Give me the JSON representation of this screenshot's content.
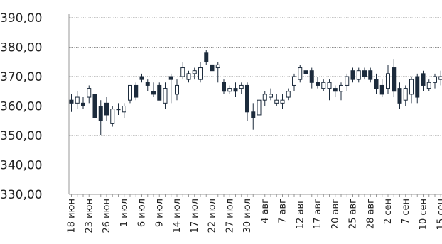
{
  "chart_data": {
    "type": "candlestick",
    "categories": [
      "18 июн",
      null,
      null,
      "23 июн",
      null,
      null,
      "26 июн",
      null,
      null,
      "1 июл",
      null,
      null,
      "6 июл",
      null,
      null,
      "9 июл",
      null,
      null,
      "14 июл",
      null,
      null,
      "17 июл",
      null,
      null,
      "22 июл",
      null,
      null,
      "27 июл",
      null,
      null,
      "30 июл",
      null,
      null,
      "4 авг",
      null,
      null,
      "7 авг",
      null,
      null,
      "12 авг",
      null,
      null,
      "17 авг",
      null,
      null,
      "20 авг",
      null,
      null,
      "25 авг",
      null,
      null,
      "28 авг",
      null,
      null,
      "2 сен",
      null,
      null,
      "7 сен",
      null,
      null,
      "10 сен",
      null,
      null,
      "15 сен"
    ],
    "open": [
      362,
      361,
      361,
      363,
      364,
      360,
      361,
      354,
      359,
      358,
      362,
      367,
      370,
      368,
      365,
      367,
      361,
      370,
      364,
      370,
      369,
      371,
      369,
      378,
      374,
      373,
      368,
      365,
      366,
      366,
      367,
      358,
      357,
      362,
      363,
      361,
      361,
      363,
      367,
      369,
      372,
      372,
      368,
      366,
      366,
      366,
      365,
      367,
      372,
      369,
      372,
      372,
      369,
      367,
      366,
      373,
      366,
      362,
      364,
      370,
      371,
      366,
      368,
      369
    ],
    "high": [
      364,
      365,
      363,
      367,
      365,
      362,
      363,
      360,
      361,
      361,
      367,
      368,
      371,
      369,
      368,
      368,
      368,
      371,
      369,
      375,
      372,
      373,
      375,
      379,
      375,
      375,
      369,
      367,
      368,
      368,
      368,
      361,
      366,
      365,
      366,
      364,
      364,
      366,
      371,
      374,
      374,
      373,
      370,
      369,
      369,
      367,
      368,
      371,
      373,
      373,
      373,
      373,
      371,
      369,
      374,
      376,
      368,
      367,
      370,
      371,
      372,
      369,
      371,
      372
    ],
    "low": [
      358,
      359,
      359,
      361,
      354,
      350,
      355,
      353,
      357,
      356,
      361,
      362,
      368,
      365,
      363,
      362,
      359,
      361,
      362,
      369,
      368,
      369,
      368,
      374,
      371,
      368,
      364,
      364,
      363,
      364,
      355,
      352,
      354,
      360,
      362,
      360,
      359,
      362,
      365,
      368,
      367,
      366,
      366,
      365,
      362,
      363,
      362,
      365,
      368,
      368,
      369,
      368,
      364,
      363,
      364,
      363,
      359,
      360,
      361,
      361,
      365,
      365,
      366,
      367
    ],
    "close": [
      361,
      363,
      360,
      366,
      356,
      355,
      357,
      359,
      359,
      360,
      367,
      363,
      369,
      367,
      364,
      362,
      366,
      369,
      367,
      373,
      371,
      372,
      373,
      375,
      372,
      374,
      365,
      366,
      365,
      367,
      358,
      356,
      362,
      364,
      364,
      362,
      362,
      365,
      370,
      373,
      371,
      368,
      367,
      368,
      368,
      365,
      367,
      370,
      369,
      372,
      370,
      369,
      366,
      364,
      371,
      365,
      361,
      366,
      369,
      363,
      367,
      368,
      370,
      370
    ],
    "up_color": "#ffffff",
    "down_color": "#1c2b3c",
    "edge_color": "#1c2b3c",
    "ylim": [
      330,
      390
    ],
    "yticks": [
      {
        "value": 330,
        "label": "330,00"
      },
      {
        "value": 340,
        "label": "340,00"
      },
      {
        "value": 350,
        "label": "350,00"
      },
      {
        "value": 360,
        "label": "360,00"
      },
      {
        "value": 370,
        "label": "370,00"
      },
      {
        "value": 380,
        "label": "380,00"
      },
      {
        "value": 390,
        "label": "390,00"
      }
    ],
    "grid": true
  }
}
